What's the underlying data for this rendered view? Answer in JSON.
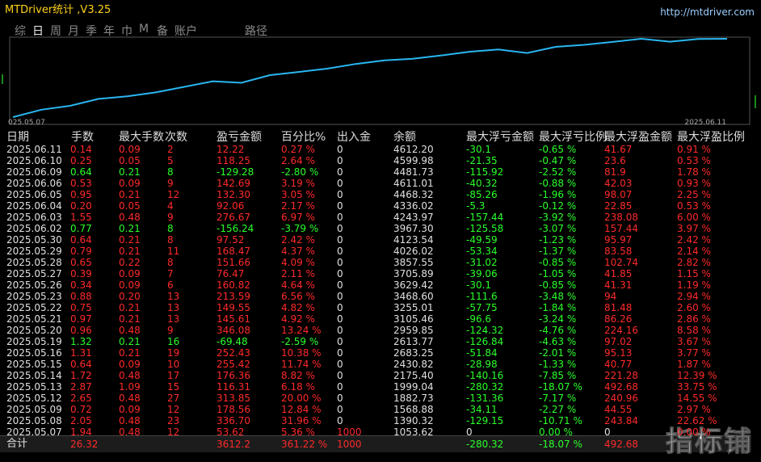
{
  "window": {
    "title": "MTDriver统计 ,V3.25",
    "url": "http://mtdriver.com"
  },
  "tabs": [
    "综",
    "日",
    "周",
    "月",
    "季",
    "年",
    "巾",
    "M",
    "备",
    "账户",
    "路径"
  ],
  "chart": {
    "x_start": "025.05.07",
    "x_end": "2025.06.11"
  },
  "table": {
    "headers": [
      "日期",
      "手数",
      "最大手数",
      "次数",
      "盈亏金额",
      "百分比%",
      "出入金",
      "余额",
      "最大浮亏金额",
      "最大浮亏比例",
      "最大浮盈金额",
      "最大浮盈比例"
    ],
    "rows": [
      [
        "2025.06.11",
        "0.14",
        "0.09",
        "2",
        "12.22",
        "0.27 %",
        "0",
        "4612.20",
        "-30.1",
        "-0.65 %",
        "41.67",
        "0.91 %"
      ],
      [
        "2025.06.10",
        "0.25",
        "0.05",
        "5",
        "118.25",
        "2.64 %",
        "0",
        "4599.98",
        "-21.35",
        "-0.47 %",
        "23.6",
        "0.53 %"
      ],
      [
        "2025.06.09",
        "0.64",
        "0.21",
        "8",
        "-129.28",
        "-2.80 %",
        "0",
        "4481.73",
        "-115.92",
        "-2.52 %",
        "81.9",
        "1.78 %"
      ],
      [
        "2025.06.06",
        "0.53",
        "0.09",
        "9",
        "142.69",
        "3.19 %",
        "0",
        "4611.01",
        "-40.32",
        "-0.88 %",
        "42.03",
        "0.93 %"
      ],
      [
        "2025.06.05",
        "0.95",
        "0.21",
        "12",
        "132.30",
        "3.05 %",
        "0",
        "4468.32",
        "-85.26",
        "-1.96 %",
        "98.07",
        "2.25 %"
      ],
      [
        "2025.06.04",
        "0.20",
        "0.05",
        "4",
        "92.06",
        "2.17 %",
        "0",
        "4336.02",
        "-5.3",
        "-0.12 %",
        "22.85",
        "0.53 %"
      ],
      [
        "2025.06.03",
        "1.55",
        "0.48",
        "9",
        "276.67",
        "6.97 %",
        "0",
        "4243.97",
        "-157.44",
        "-3.92 %",
        "238.08",
        "6.00 %"
      ],
      [
        "2025.06.02",
        "0.77",
        "0.21",
        "8",
        "-156.24",
        "-3.79 %",
        "0",
        "3967.30",
        "-125.58",
        "-3.07 %",
        "157.44",
        "3.97 %"
      ],
      [
        "2025.05.30",
        "0.64",
        "0.21",
        "8",
        "97.52",
        "2.42 %",
        "0",
        "4123.54",
        "-49.59",
        "-1.23 %",
        "95.97",
        "2.42 %"
      ],
      [
        "2025.05.29",
        "0.79",
        "0.21",
        "11",
        "168.47",
        "4.37 %",
        "0",
        "4026.02",
        "-53.34",
        "-1.37 %",
        "83.58",
        "2.14 %"
      ],
      [
        "2025.05.28",
        "0.65",
        "0.22",
        "8",
        "151.66",
        "4.09 %",
        "0",
        "3857.55",
        "-31.02",
        "-0.85 %",
        "102.74",
        "2.82 %"
      ],
      [
        "2025.05.27",
        "0.39",
        "0.09",
        "7",
        "76.47",
        "2.11 %",
        "0",
        "3705.89",
        "-39.06",
        "-1.05 %",
        "41.85",
        "1.15 %"
      ],
      [
        "2025.05.26",
        "0.34",
        "0.09",
        "6",
        "160.82",
        "4.64 %",
        "0",
        "3629.42",
        "-30.1",
        "-0.85 %",
        "41.31",
        "1.19 %"
      ],
      [
        "2025.05.23",
        "0.88",
        "0.20",
        "13",
        "213.59",
        "6.56 %",
        "0",
        "3468.60",
        "-111.6",
        "-3.48 %",
        "94",
        "2.94 %"
      ],
      [
        "2025.05.22",
        "0.75",
        "0.21",
        "13",
        "149.55",
        "4.82 %",
        "0",
        "3255.01",
        "-57.75",
        "-1.84 %",
        "81.48",
        "2.60 %"
      ],
      [
        "2025.05.21",
        "0.97",
        "0.21",
        "13",
        "145.61",
        "4.92 %",
        "0",
        "3105.46",
        "-96.6",
        "-3.24 %",
        "86.26",
        "2.86 %"
      ],
      [
        "2025.05.20",
        "0.96",
        "0.48",
        "9",
        "346.08",
        "13.24 %",
        "0",
        "2959.85",
        "-124.32",
        "-4.76 %",
        "224.16",
        "8.58 %"
      ],
      [
        "2025.05.19",
        "1.32",
        "0.21",
        "16",
        "-69.48",
        "-2.59 %",
        "0",
        "2613.77",
        "-126.84",
        "-4.63 %",
        "97.02",
        "3.67 %"
      ],
      [
        "2025.05.16",
        "1.31",
        "0.21",
        "19",
        "252.43",
        "10.38 %",
        "0",
        "2683.25",
        "-51.84",
        "-2.01 %",
        "95.13",
        "3.77 %"
      ],
      [
        "2025.05.15",
        "0.64",
        "0.09",
        "10",
        "255.42",
        "11.74 %",
        "0",
        "2430.82",
        "-28.98",
        "-1.33 %",
        "40.77",
        "1.87 %"
      ],
      [
        "2025.05.14",
        "1.72",
        "0.48",
        "17",
        "176.36",
        "8.82 %",
        "0",
        "2175.40",
        "-140.16",
        "-7.85 %",
        "221.28",
        "12.39 %"
      ],
      [
        "2025.05.13",
        "2.87",
        "1.09",
        "15",
        "116.31",
        "6.18 %",
        "0",
        "1999.04",
        "-280.32",
        "-18.07 %",
        "492.68",
        "33.75 %"
      ],
      [
        "2025.05.12",
        "2.65",
        "0.48",
        "27",
        "313.85",
        "20.00 %",
        "0",
        "1882.73",
        "-131.36",
        "-7.17 %",
        "240.96",
        "14.55 %"
      ],
      [
        "2025.05.09",
        "0.72",
        "0.09",
        "12",
        "178.56",
        "12.84 %",
        "0",
        "1568.88",
        "-34.11",
        "-2.27 %",
        "44.55",
        "2.97 %"
      ],
      [
        "2025.05.08",
        "2.05",
        "0.48",
        "23",
        "336.70",
        "31.96 %",
        "0",
        "1390.32",
        "-129.15",
        "-10.71 %",
        "243.84",
        "22.62 %"
      ],
      [
        "2025.05.07",
        "1.94",
        "0.48",
        "12",
        "53.62",
        "5.36 %",
        "1000",
        "1053.62",
        "0",
        "0.00 %",
        "0",
        "0.00 %"
      ]
    ],
    "total": {
      "label": "合计",
      "lots": "26.32",
      "profit": "3612.2",
      "percent": "361.22 %",
      "deposit": "1000",
      "max_loss": "-280.32",
      "max_loss_pct": "-18.07 %",
      "max_gain": "492.68"
    }
  },
  "watermark": "指标铺"
}
